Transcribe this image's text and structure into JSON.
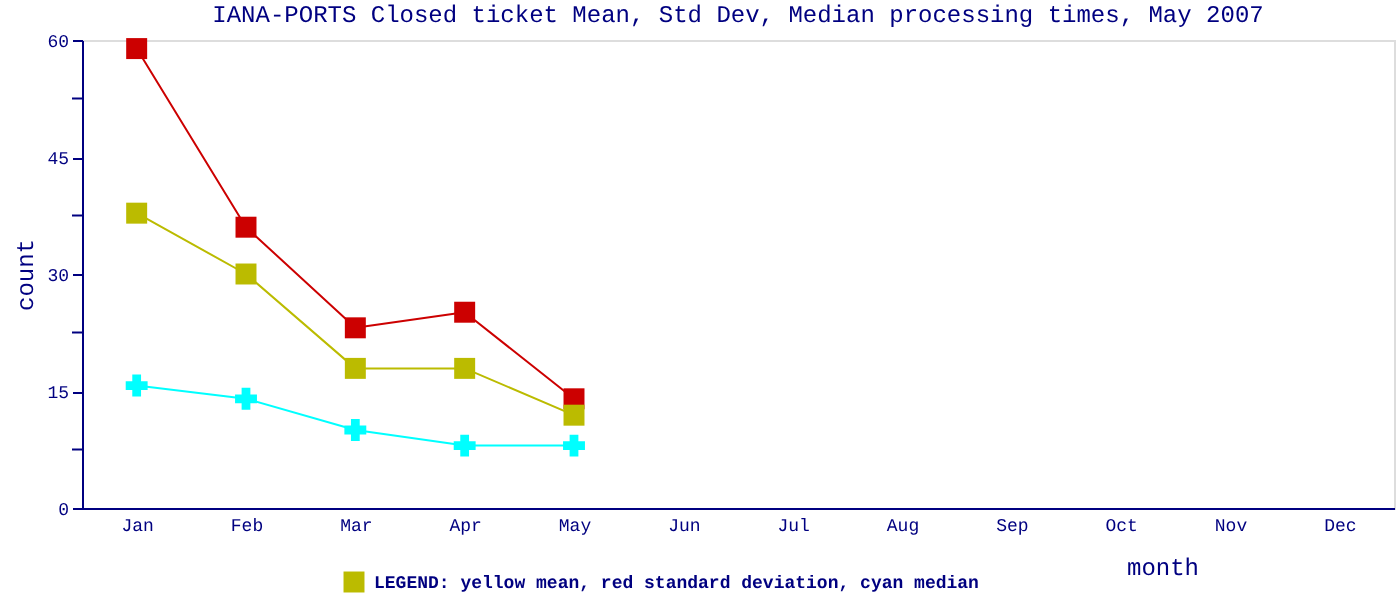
{
  "chart_data": {
    "type": "line",
    "title": "IANA-PORTS Closed ticket Mean, Std Dev, Median processing times, May 2007",
    "xlabel": "month",
    "ylabel": "count",
    "categories": [
      "Jan",
      "Feb",
      "Mar",
      "Apr",
      "May",
      "Jun",
      "Jul",
      "Aug",
      "Sep",
      "Oct",
      "Nov",
      "Dec"
    ],
    "ylim": [
      0,
      60
    ],
    "yticks": [
      0,
      {
        "value": 7.5,
        "label": null
      },
      15,
      {
        "value": 22.5,
        "label": null
      },
      30,
      {
        "value": 37.5,
        "label": null
      },
      45,
      {
        "value": 52.5,
        "label": null
      },
      60
    ],
    "grid": false,
    "legend": "bottom",
    "series": [
      {
        "color": "#cc0000",
        "marker": "square",
        "values": [
          58.9,
          36.0,
          23.1,
          25.1,
          14.0,
          null,
          null,
          null,
          null,
          null,
          null,
          null
        ]
      },
      {
        "name": "LEGEND: yellow mean, red standard deviation, cyan median",
        "color": "#bbbb00",
        "marker": "square",
        "values": [
          37.8,
          30.0,
          17.9,
          17.9,
          11.9,
          null,
          null,
          null,
          null,
          null,
          null,
          null
        ]
      },
      {
        "color": "#00ffff",
        "marker": "cross",
        "values": [
          15.7,
          14.0,
          10.0,
          8.0,
          8.0,
          null,
          null,
          null,
          null,
          null,
          null,
          null
        ]
      }
    ]
  }
}
